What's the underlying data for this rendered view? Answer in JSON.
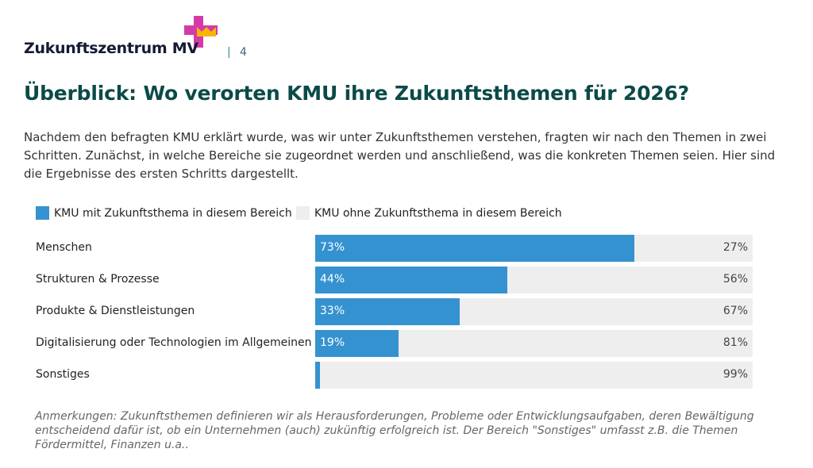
{
  "header": {
    "logo_text": "Zukunftszentrum MV",
    "page_separator": "|",
    "page_number": "4"
  },
  "title": "Überblick: Wo verorten KMU ihre Zukunftsthemen für 2026?",
  "intro": "Nachdem den befragten KMU erklärt wurde, was wir unter Zukunftsthemen verstehen, fragten wir nach den Themen in zwei Schritten. Zunächst, in welche Bereiche sie zugeordnet werden und anschließend, was die konkreten Themen seien. Hier sind die Ergebnisse des ersten Schritts dargestellt.",
  "colors": {
    "with": "#3592d0",
    "without": "#eeeeee",
    "title": "#0b4a48"
  },
  "chart_data": {
    "type": "bar",
    "orientation": "horizontal",
    "stacked": true,
    "categories": [
      "Menschen",
      "Strukturen & Prozesse",
      "Produkte & Dienstleistungen",
      "Digitalisierung oder Technologien im Allgemeinen",
      "Sonstiges"
    ],
    "series": [
      {
        "name": "KMU mit Zukunftsthema in diesem Bereich",
        "values": [
          73,
          44,
          33,
          19,
          1
        ],
        "labels": [
          "73%",
          "44%",
          "33%",
          "19%",
          ""
        ]
      },
      {
        "name": "KMU ohne Zukunftsthema in diesem Bereich",
        "values": [
          27,
          56,
          67,
          81,
          99
        ],
        "labels": [
          "27%",
          "56%",
          "67%",
          "81%",
          "99%"
        ]
      }
    ],
    "xlim": [
      0,
      100
    ],
    "legend": "top-left",
    "grid": false
  },
  "note": "Anmerkungen: Zukunftsthemen definieren wir als Herausforderungen, Probleme oder Entwicklungsaufgaben, deren Bewältigung entscheidend dafür ist, ob ein Unternehmen (auch) zukünftig erfolgreich ist. Der Bereich \"Sonstiges\" umfasst z.B. die Themen Fördermittel, Finanzen u.a.."
}
